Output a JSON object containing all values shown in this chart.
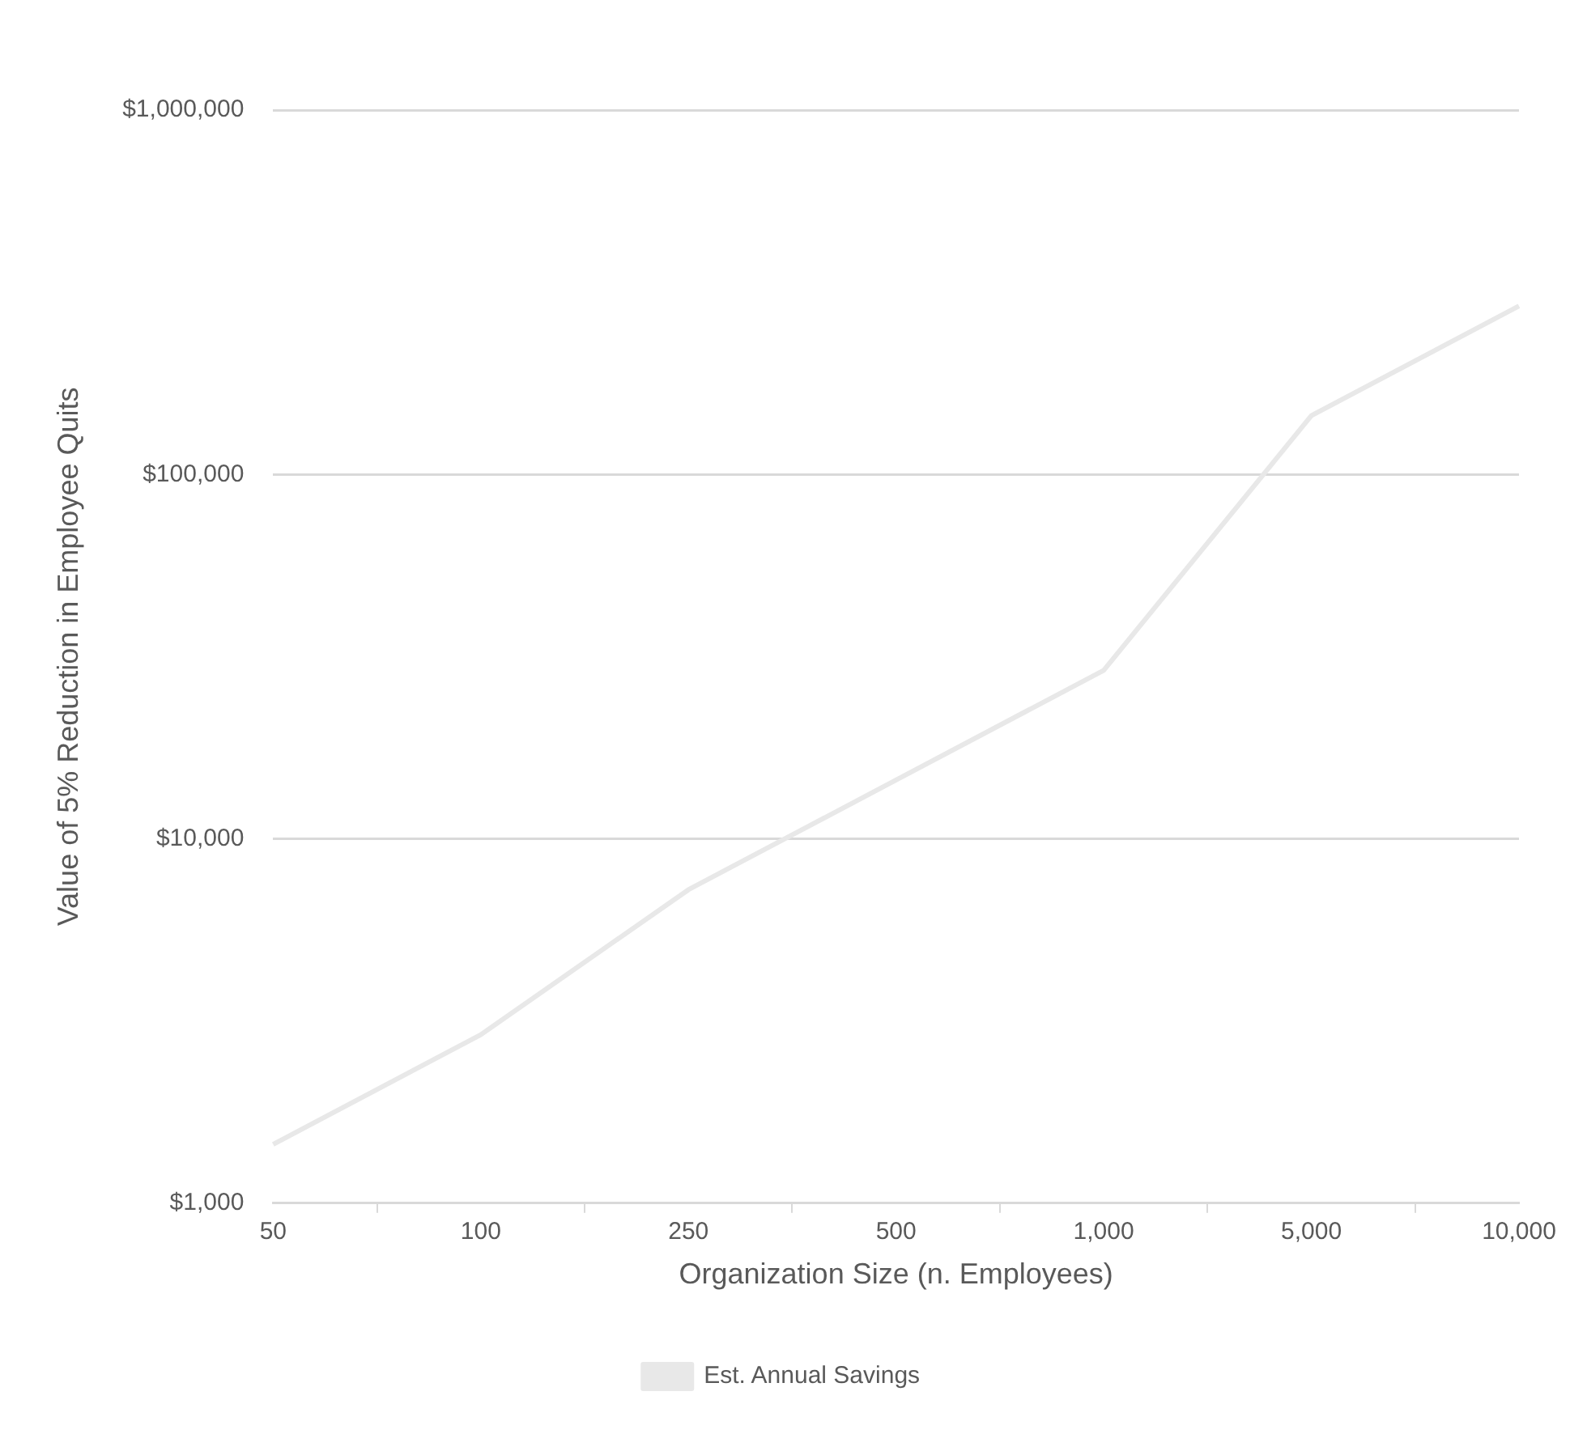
{
  "chart_data": {
    "type": "line",
    "xlabel": "Organization Size (n. Employees)",
    "ylabel": "Value of 5% Reduction in Employee Quits",
    "categories": [
      "50",
      "100",
      "250",
      "500",
      "1,000",
      "5,000",
      "10,000"
    ],
    "series": [
      {
        "name": "Est. Annual Savings",
        "color": "#e8e8e8",
        "values": [
          1450,
          2900,
          7250,
          14500,
          29000,
          145000,
          290000
        ]
      }
    ],
    "log": "y",
    "ylim": [
      1000,
      1000000
    ],
    "yticks": [
      {
        "value": 1000,
        "label": "$1,000"
      },
      {
        "value": 10000,
        "label": "$10,000"
      },
      {
        "value": 100000,
        "label": "$100,000"
      },
      {
        "value": 1000000,
        "label": "$1,000,000"
      }
    ],
    "grid": "y",
    "legend": "bottom",
    "marker": "none"
  }
}
